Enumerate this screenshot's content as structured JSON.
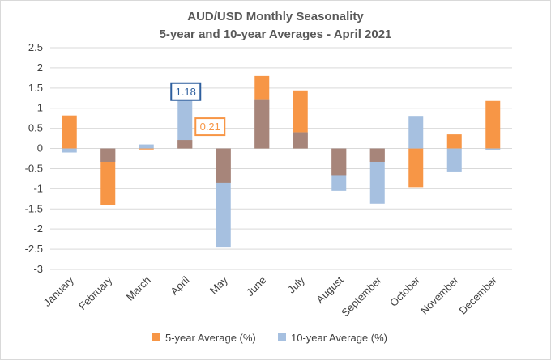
{
  "chart_data": {
    "type": "bar",
    "title": "AUD/USD Monthly Seasonality",
    "subtitle": "5-year and 10-year Averages - April 2021",
    "categories": [
      "January",
      "February",
      "March",
      "April",
      "May",
      "June",
      "July",
      "August",
      "September",
      "October",
      "November",
      "December"
    ],
    "series": [
      {
        "name": "5-year Average (%)",
        "color": "#f79646",
        "values": [
          0.82,
          -1.4,
          -0.02,
          0.21,
          -0.85,
          1.8,
          1.44,
          -0.66,
          -0.33,
          -0.96,
          0.35,
          1.18
        ]
      },
      {
        "name": "10-year Average (%)",
        "color": "#a6c0e0",
        "values": [
          -0.1,
          -0.33,
          0.1,
          1.18,
          -2.44,
          1.22,
          0.4,
          -1.05,
          -1.37,
          0.79,
          -0.57,
          -0.03
        ]
      }
    ],
    "overlap_color": "#a7857a",
    "ylim": [
      -3,
      2.5
    ],
    "yticks": [
      "2.5",
      "2",
      "1.5",
      "1",
      "0.5",
      "0",
      "-0.5",
      "-1",
      "-1.5",
      "-2",
      "-2.5",
      "-3"
    ],
    "grid": true,
    "legend_position": "bottom",
    "annotations": [
      {
        "text": "1.18",
        "category": "April",
        "series": "10-year Average (%)",
        "color": "#2e5f9e"
      },
      {
        "text": "0.21",
        "category": "April",
        "series": "5-year Average (%)",
        "color": "#f79646"
      }
    ]
  }
}
